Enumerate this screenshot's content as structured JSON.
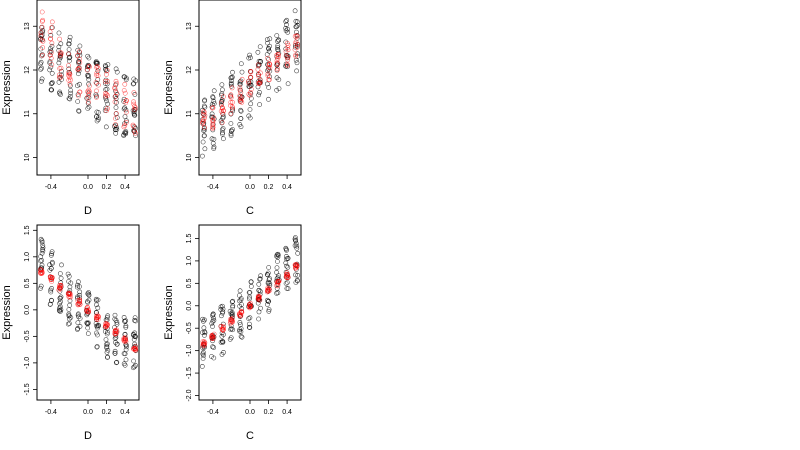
{
  "chart_data": [
    {
      "type": "scatter",
      "xlabel": "D",
      "ylabel": "Expression",
      "xlim": [
        -0.55,
        0.55
      ],
      "ylim": [
        9.6,
        13.6
      ],
      "xticks": [
        -0.4,
        0.0,
        0.2,
        0.4
      ],
      "xtick_labels": [
        "-0.4",
        "0.0",
        "0.2",
        "0.4"
      ],
      "yticks": [
        10,
        11,
        12,
        13
      ],
      "ytick_labels": [
        "10",
        "11",
        "12",
        "13"
      ],
      "grid": false,
      "series": [
        {
          "color": "#000000",
          "shape": "open-circle",
          "trend": {
            "x": [
              -0.5,
              -0.4,
              -0.3,
              -0.2,
              -0.1,
              0.0,
              0.1,
              0.2,
              0.3,
              0.4,
              0.5
            ],
            "y": [
              12.4,
              12.25,
              12.1,
              12.0,
              11.8,
              11.65,
              11.5,
              11.4,
              11.3,
              11.2,
              11.1
            ]
          },
          "spread": 0.75
        },
        {
          "color": "#ff0000",
          "shape": "open-circle",
          "trend": {
            "x": [
              -0.5,
              -0.4,
              -0.3,
              -0.2,
              -0.1,
              0.0,
              0.1,
              0.2,
              0.3,
              0.4,
              0.5
            ],
            "y": [
              12.8,
              12.55,
              12.35,
              12.15,
              11.95,
              11.8,
              11.6,
              11.45,
              11.3,
              11.2,
              11.1
            ]
          },
          "spread": 0.55
        }
      ]
    },
    {
      "type": "scatter",
      "xlabel": "C",
      "ylabel": "Expression",
      "xlim": [
        -0.55,
        0.55
      ],
      "ylim": [
        9.6,
        13.6
      ],
      "xticks": [
        -0.4,
        0.0,
        0.2,
        0.4
      ],
      "xtick_labels": [
        "-0.4",
        "0.0",
        "0.2",
        "0.4"
      ],
      "yticks": [
        10,
        11,
        12,
        13
      ],
      "ytick_labels": [
        "10",
        "11",
        "12",
        "13"
      ],
      "grid": false,
      "series": [
        {
          "color": "#000000",
          "shape": "open-circle",
          "trend": {
            "x": [
              -0.5,
              -0.4,
              -0.3,
              -0.2,
              -0.1,
              0.0,
              0.1,
              0.2,
              0.3,
              0.4,
              0.5
            ],
            "y": [
              10.7,
              10.9,
              11.0,
              11.2,
              11.4,
              11.6,
              11.8,
              12.0,
              12.2,
              12.4,
              12.7
            ]
          },
          "spread": 0.75
        },
        {
          "color": "#ff0000",
          "shape": "open-circle",
          "trend": {
            "x": [
              -0.5,
              -0.4,
              -0.3,
              -0.2,
              -0.1,
              0.0,
              0.1,
              0.2,
              0.3,
              0.4,
              0.5
            ],
            "y": [
              10.75,
              10.95,
              11.1,
              11.3,
              11.5,
              11.7,
              11.85,
              12.05,
              12.2,
              12.35,
              12.5
            ]
          },
          "spread": 0.3
        }
      ]
    },
    {
      "type": "scatter",
      "xlabel": "D",
      "ylabel": "Expression",
      "xlim": [
        -0.55,
        0.55
      ],
      "ylim": [
        -1.7,
        1.6
      ],
      "xticks": [
        -0.4,
        0.0,
        0.2,
        0.4
      ],
      "xtick_labels": [
        "-0.4",
        "0.0",
        "0.2",
        "0.4"
      ],
      "yticks": [
        -1.5,
        -1.0,
        -0.5,
        0.0,
        0.5,
        1.0,
        1.5
      ],
      "ytick_labels": [
        "-1.5",
        "-1.0",
        "-0.5",
        "0.0",
        "0.5",
        "1.0",
        "1.5"
      ],
      "grid": false,
      "series": [
        {
          "color": "#000000",
          "shape": "open-circle",
          "trend": {
            "x": [
              -0.5,
              -0.4,
              -0.3,
              -0.2,
              -0.1,
              0.0,
              0.1,
              0.2,
              0.3,
              0.4,
              0.5
            ],
            "y": [
              0.85,
              0.6,
              0.4,
              0.2,
              0.05,
              -0.1,
              -0.25,
              -0.4,
              -0.5,
              -0.55,
              -0.6
            ]
          },
          "spread": 0.5
        },
        {
          "color": "#ff0000",
          "shape": "open-circle",
          "trend": {
            "x": [
              -0.5,
              -0.4,
              -0.3,
              -0.2,
              -0.1,
              0.0,
              0.1,
              0.2,
              0.3,
              0.4,
              0.5
            ],
            "y": [
              0.72,
              0.58,
              0.42,
              0.28,
              0.14,
              0.0,
              -0.14,
              -0.28,
              -0.42,
              -0.56,
              -0.72
            ]
          },
          "spread": 0.05
        }
      ]
    },
    {
      "type": "scatter",
      "xlabel": "C",
      "ylabel": "Expression",
      "xlim": [
        -0.55,
        0.55
      ],
      "ylim": [
        -2.1,
        1.8
      ],
      "xticks": [
        -0.4,
        0.0,
        0.2,
        0.4
      ],
      "xtick_labels": [
        "-0.4",
        "0.0",
        "0.2",
        "0.4"
      ],
      "yticks": [
        -2.0,
        -1.5,
        -1.0,
        -0.5,
        0.0,
        0.5,
        1.0,
        1.5
      ],
      "ytick_labels": [
        "-2.0",
        "-1.5",
        "-1.0",
        "-0.5",
        "0.0",
        "0.5",
        "1.0",
        "1.5"
      ],
      "grid": false,
      "series": [
        {
          "color": "#000000",
          "shape": "open-circle",
          "trend": {
            "x": [
              -0.5,
              -0.4,
              -0.3,
              -0.2,
              -0.1,
              0.0,
              0.1,
              0.2,
              0.3,
              0.4,
              0.5
            ],
            "y": [
              -0.85,
              -0.7,
              -0.55,
              -0.4,
              -0.2,
              0.0,
              0.2,
              0.4,
              0.6,
              0.8,
              1.0
            ]
          },
          "spread": 0.55
        },
        {
          "color": "#ff0000",
          "shape": "open-circle",
          "trend": {
            "x": [
              -0.5,
              -0.4,
              -0.3,
              -0.2,
              -0.1,
              0.0,
              0.1,
              0.2,
              0.3,
              0.4,
              0.5
            ],
            "y": [
              -0.85,
              -0.68,
              -0.5,
              -0.34,
              -0.17,
              0.0,
              0.17,
              0.34,
              0.5,
              0.68,
              0.87
            ]
          },
          "spread": 0.06
        }
      ]
    }
  ]
}
